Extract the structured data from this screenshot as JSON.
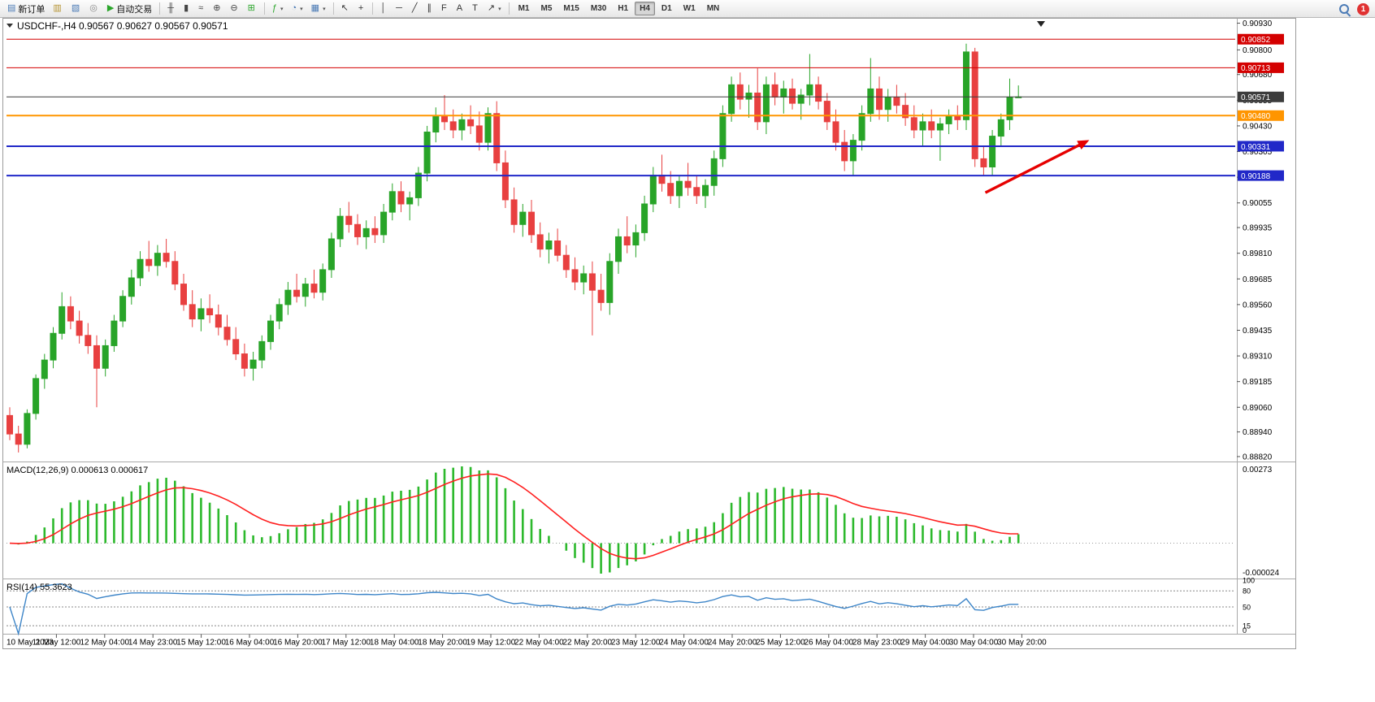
{
  "toolbar": {
    "groups": [
      {
        "buttons": [
          {
            "name": "new-order",
            "icon": "▤",
            "color": "#4a7ab5",
            "label": "新订单"
          },
          {
            "name": "charts-profile",
            "icon": "▥",
            "color": "#b5922e"
          },
          {
            "name": "chart-window",
            "icon": "▧",
            "color": "#4a7ab5"
          },
          {
            "name": "sound-alerts",
            "icon": "◎",
            "color": "#8a8a8a"
          },
          {
            "name": "autotrading",
            "icon": "▶",
            "color": "#2aa52a",
            "label": "自动交易"
          }
        ]
      },
      {
        "buttons": [
          {
            "name": "bar-chart-type",
            "icon": "╫",
            "color": "#444444"
          },
          {
            "name": "candlestick-chart-type",
            "icon": "▮",
            "color": "#444444"
          },
          {
            "name": "line-chart-type",
            "icon": "≈",
            "color": "#444444"
          },
          {
            "name": "zoom-in",
            "icon": "⊕",
            "color": "#444444"
          },
          {
            "name": "zoom-out",
            "icon": "⊖",
            "color": "#444444"
          },
          {
            "name": "tile-windows",
            "icon": "⊞",
            "color": "#2aa52a"
          }
        ]
      },
      {
        "buttons": [
          {
            "name": "indicators-list",
            "icon": "ƒ",
            "color": "#2aa52a",
            "caret": true
          },
          {
            "name": "period-presets",
            "icon": "◔",
            "color": "#4a7ab5",
            "caret": true
          },
          {
            "name": "templates",
            "icon": "▦",
            "color": "#4a7ab5",
            "caret": true
          }
        ]
      },
      {
        "buttons": [
          {
            "name": "cursor",
            "icon": "↖",
            "color": "#333333"
          },
          {
            "name": "crosshair",
            "icon": "+",
            "color": "#333333"
          }
        ]
      },
      {
        "buttons": [
          {
            "name": "vertical-line",
            "icon": "│",
            "color": "#333333"
          },
          {
            "name": "horizontal-line",
            "icon": "─",
            "color": "#333333"
          },
          {
            "name": "trendline",
            "icon": "╱",
            "color": "#333333"
          },
          {
            "name": "equidistant-channel",
            "icon": "∥",
            "color": "#333333"
          },
          {
            "name": "fibonacci",
            "icon": "F",
            "color": "#333333"
          },
          {
            "name": "text",
            "icon": "A",
            "color": "#333333"
          },
          {
            "name": "text-label",
            "icon": "T",
            "color": "#333333"
          },
          {
            "name": "arrows-tool",
            "icon": "↗",
            "color": "#333333",
            "caret": true
          }
        ]
      }
    ],
    "timeframes": [
      "M1",
      "M5",
      "M15",
      "M30",
      "H1",
      "H4",
      "D1",
      "W1",
      "MN"
    ],
    "active_timeframe": "H4",
    "notification_count": "1"
  },
  "chart": {
    "title": "USDCHF-,H4 0.90567 0.90627 0.90567 0.90571",
    "symbol": "USDCHF-",
    "period": "H4",
    "open": "0.90567",
    "high": "0.90627",
    "low": "0.90567",
    "close": "0.90571"
  },
  "chart_data": {
    "type": "candlestick",
    "symbol": "USDCHF",
    "timeframe": "H4",
    "price_range": [
      0.888,
      0.9094
    ],
    "candle_colors": {
      "up": "#28a428",
      "down": "#e84040"
    },
    "y_axis_ticks": [
      0.9093,
      0.908,
      0.9068,
      0.90555,
      0.9043,
      0.90305,
      0.9018,
      0.90055,
      0.89935,
      0.8981,
      0.89685,
      0.8956,
      0.89435,
      0.8931,
      0.89185,
      0.8906,
      0.8894,
      0.8882
    ],
    "hlines": [
      {
        "price": 0.90852,
        "label": "0.90852",
        "color": "#d40000",
        "width": 1
      },
      {
        "price": 0.90713,
        "label": "0.90713",
        "color": "#d40000",
        "width": 1
      },
      {
        "price": 0.90571,
        "label": "0.90571",
        "color": "#3c3c3c",
        "width": 1
      },
      {
        "price": 0.9048,
        "label": "0.90480",
        "color": "#ff9500",
        "width": 2
      },
      {
        "price": 0.90331,
        "label": "0.90331",
        "color": "#2128c8",
        "width": 2
      },
      {
        "price": 0.90188,
        "label": "0.90188",
        "color": "#2128c8",
        "width": 2
      }
    ],
    "candles": [
      [
        0.8902,
        0.8906,
        0.889,
        0.8893
      ],
      [
        0.8893,
        0.8897,
        0.8884,
        0.8888
      ],
      [
        0.8888,
        0.8905,
        0.8886,
        0.8903
      ],
      [
        0.8903,
        0.8922,
        0.89,
        0.892
      ],
      [
        0.892,
        0.8932,
        0.8915,
        0.8929
      ],
      [
        0.8929,
        0.8945,
        0.8925,
        0.8942
      ],
      [
        0.8942,
        0.8962,
        0.8939,
        0.8955
      ],
      [
        0.8955,
        0.896,
        0.8944,
        0.8948
      ],
      [
        0.8948,
        0.8953,
        0.8937,
        0.8941
      ],
      [
        0.8941,
        0.8947,
        0.8932,
        0.8936
      ],
      [
        0.8936,
        0.8941,
        0.8906,
        0.8925
      ],
      [
        0.8925,
        0.8939,
        0.8921,
        0.8936
      ],
      [
        0.8936,
        0.8951,
        0.8933,
        0.8948
      ],
      [
        0.8948,
        0.8963,
        0.8945,
        0.896
      ],
      [
        0.896,
        0.8973,
        0.8956,
        0.8969
      ],
      [
        0.8969,
        0.8982,
        0.8965,
        0.8978
      ],
      [
        0.8978,
        0.8987,
        0.8972,
        0.8975
      ],
      [
        0.8975,
        0.8985,
        0.897,
        0.8981
      ],
      [
        0.8981,
        0.8988,
        0.8974,
        0.8977
      ],
      [
        0.8977,
        0.8982,
        0.8963,
        0.8966
      ],
      [
        0.8966,
        0.8971,
        0.8953,
        0.8956
      ],
      [
        0.8956,
        0.8963,
        0.8945,
        0.8949
      ],
      [
        0.8949,
        0.8959,
        0.8943,
        0.8954
      ],
      [
        0.8954,
        0.8961,
        0.8947,
        0.8951
      ],
      [
        0.8951,
        0.8956,
        0.8941,
        0.8945
      ],
      [
        0.8945,
        0.8951,
        0.8936,
        0.8939
      ],
      [
        0.8939,
        0.8945,
        0.8929,
        0.8932
      ],
      [
        0.8932,
        0.8937,
        0.8921,
        0.8925
      ],
      [
        0.8925,
        0.8933,
        0.8919,
        0.8929
      ],
      [
        0.8929,
        0.8941,
        0.8925,
        0.8938
      ],
      [
        0.8938,
        0.8951,
        0.8934,
        0.8948
      ],
      [
        0.8948,
        0.8959,
        0.8944,
        0.8956
      ],
      [
        0.8956,
        0.8967,
        0.8951,
        0.8963
      ],
      [
        0.8963,
        0.8971,
        0.8957,
        0.896
      ],
      [
        0.896,
        0.8969,
        0.8955,
        0.8966
      ],
      [
        0.8966,
        0.8973,
        0.8959,
        0.8962
      ],
      [
        0.8962,
        0.8976,
        0.8958,
        0.8973
      ],
      [
        0.8973,
        0.8991,
        0.8969,
        0.8988
      ],
      [
        0.8988,
        0.9003,
        0.8984,
        0.8999
      ],
      [
        0.8999,
        0.9006,
        0.8991,
        0.8995
      ],
      [
        0.8995,
        0.9,
        0.8985,
        0.8989
      ],
      [
        0.8989,
        0.8997,
        0.8983,
        0.8993
      ],
      [
        0.8993,
        0.8999,
        0.8986,
        0.899
      ],
      [
        0.899,
        0.9005,
        0.8986,
        0.9001
      ],
      [
        0.9001,
        0.9015,
        0.8997,
        0.9011
      ],
      [
        0.9011,
        0.9016,
        0.9001,
        0.9005
      ],
      [
        0.9005,
        0.9011,
        0.8997,
        0.9008
      ],
      [
        0.9008,
        0.9023,
        0.9004,
        0.902
      ],
      [
        0.902,
        0.9043,
        0.9016,
        0.904
      ],
      [
        0.904,
        0.9052,
        0.9035,
        0.9048
      ],
      [
        0.9048,
        0.9058,
        0.9041,
        0.9045
      ],
      [
        0.9045,
        0.9051,
        0.9037,
        0.9041
      ],
      [
        0.9041,
        0.9049,
        0.9036,
        0.9046
      ],
      [
        0.9046,
        0.9053,
        0.9039,
        0.9043
      ],
      [
        0.9043,
        0.905,
        0.9031,
        0.9035
      ],
      [
        0.9035,
        0.9052,
        0.9031,
        0.9049
      ],
      [
        0.9049,
        0.9055,
        0.9021,
        0.9025
      ],
      [
        0.9025,
        0.9031,
        0.9003,
        0.9007
      ],
      [
        0.9007,
        0.9013,
        0.8991,
        0.8995
      ],
      [
        0.8995,
        0.9005,
        0.8989,
        0.9001
      ],
      [
        0.9001,
        0.9007,
        0.8986,
        0.899
      ],
      [
        0.899,
        0.8996,
        0.8979,
        0.8983
      ],
      [
        0.8983,
        0.8991,
        0.8976,
        0.8987
      ],
      [
        0.8987,
        0.8993,
        0.8977,
        0.898
      ],
      [
        0.898,
        0.8985,
        0.8969,
        0.8973
      ],
      [
        0.8973,
        0.8979,
        0.8963,
        0.8967
      ],
      [
        0.8967,
        0.8975,
        0.8961,
        0.8971
      ],
      [
        0.8971,
        0.8977,
        0.8941,
        0.8963
      ],
      [
        0.8963,
        0.8971,
        0.8953,
        0.8957
      ],
      [
        0.8957,
        0.8981,
        0.8951,
        0.8977
      ],
      [
        0.8977,
        0.8993,
        0.8971,
        0.8989
      ],
      [
        0.8989,
        0.8999,
        0.8981,
        0.8985
      ],
      [
        0.8985,
        0.8995,
        0.8979,
        0.8991
      ],
      [
        0.8991,
        0.9009,
        0.8987,
        0.9005
      ],
      [
        0.9005,
        0.9023,
        0.9001,
        0.9019
      ],
      [
        0.9019,
        0.9029,
        0.9011,
        0.9015
      ],
      [
        0.9015,
        0.9021,
        0.9005,
        0.9009
      ],
      [
        0.9009,
        0.9019,
        0.9003,
        0.9016
      ],
      [
        0.9016,
        0.9025,
        0.9009,
        0.9013
      ],
      [
        0.9013,
        0.9019,
        0.9005,
        0.9009
      ],
      [
        0.9009,
        0.9017,
        0.9003,
        0.9014
      ],
      [
        0.9014,
        0.9031,
        0.9009,
        0.9027
      ],
      [
        0.9027,
        0.9053,
        0.9023,
        0.9049
      ],
      [
        0.9049,
        0.9067,
        0.9045,
        0.9063
      ],
      [
        0.9063,
        0.9069,
        0.9051,
        0.9056
      ],
      [
        0.9056,
        0.9063,
        0.9047,
        0.9059
      ],
      [
        0.9059,
        0.9071,
        0.9041,
        0.9045
      ],
      [
        0.9045,
        0.9067,
        0.9039,
        0.9063
      ],
      [
        0.9063,
        0.9069,
        0.9053,
        0.9057
      ],
      [
        0.9057,
        0.9065,
        0.9049,
        0.9061
      ],
      [
        0.9061,
        0.9066,
        0.9051,
        0.9054
      ],
      [
        0.9054,
        0.9061,
        0.9046,
        0.9058
      ],
      [
        0.9058,
        0.9078,
        0.9053,
        0.9063
      ],
      [
        0.9063,
        0.9067,
        0.9051,
        0.9055
      ],
      [
        0.9055,
        0.9059,
        0.9041,
        0.9045
      ],
      [
        0.9045,
        0.9051,
        0.9031,
        0.9035
      ],
      [
        0.9035,
        0.9041,
        0.9021,
        0.9026
      ],
      [
        0.9026,
        0.9039,
        0.9019,
        0.9036
      ],
      [
        0.9036,
        0.9053,
        0.9031,
        0.9049
      ],
      [
        0.9049,
        0.9076,
        0.9045,
        0.9061
      ],
      [
        0.9061,
        0.9067,
        0.9046,
        0.9051
      ],
      [
        0.9051,
        0.9061,
        0.9045,
        0.9057
      ],
      [
        0.9057,
        0.9063,
        0.9049,
        0.9053
      ],
      [
        0.9053,
        0.9059,
        0.9043,
        0.9047
      ],
      [
        0.9047,
        0.9053,
        0.9037,
        0.9041
      ],
      [
        0.9041,
        0.9049,
        0.9033,
        0.9045
      ],
      [
        0.9045,
        0.9051,
        0.9037,
        0.9041
      ],
      [
        0.9041,
        0.9047,
        0.9026,
        0.9044
      ],
      [
        0.9044,
        0.9051,
        0.9039,
        0.9048
      ],
      [
        0.9048,
        0.9053,
        0.9041,
        0.9046
      ],
      [
        0.9046,
        0.9083,
        0.9041,
        0.9079
      ],
      [
        0.9079,
        0.9081,
        0.9023,
        0.9027
      ],
      [
        0.9027,
        0.9033,
        0.9019,
        0.9023
      ],
      [
        0.9023,
        0.9041,
        0.9019,
        0.9038
      ],
      [
        0.9038,
        0.9049,
        0.9033,
        0.9046
      ],
      [
        0.9046,
        0.9066,
        0.9041,
        0.9057
      ],
      [
        0.90567,
        0.90627,
        0.90567,
        0.90571
      ]
    ],
    "indicators": {
      "macd": {
        "label": "MACD(12,26,9) 0.000613 0.000617",
        "fast": 12,
        "slow": 26,
        "signal": 9,
        "histogram_color": "#2db92d",
        "signal_color": "#ff2020",
        "scale_top": "0.00273",
        "scale_bottom": "-0.000024"
      },
      "rsi": {
        "label": "RSI(14) 55.3623",
        "period": 14,
        "color": "#3d85c8",
        "levels": [
          80,
          50,
          15
        ],
        "scale_labels": [
          100,
          80,
          50,
          15,
          0
        ]
      }
    },
    "time_labels": [
      "10 May 2023",
      "11 May 12:00",
      "12 May 04:00",
      "14 May 23:00",
      "15 May 12:00",
      "16 May 04:00",
      "16 May 20:00",
      "17 May 12:00",
      "18 May 04:00",
      "18 May 20:00",
      "19 May 12:00",
      "22 May 04:00",
      "22 May 20:00",
      "23 May 12:00",
      "24 May 04:00",
      "24 May 20:00",
      "25 May 12:00",
      "26 May 04:00",
      "28 May 23:00",
      "29 May 04:00",
      "30 May 04:00",
      "30 May 20:00"
    ],
    "annotation_arrow": {
      "from": {
        "bar": 112.2,
        "price": 0.90105
      },
      "to": {
        "bar": 123.4,
        "price": 0.90345
      },
      "color": "#e60000"
    }
  }
}
